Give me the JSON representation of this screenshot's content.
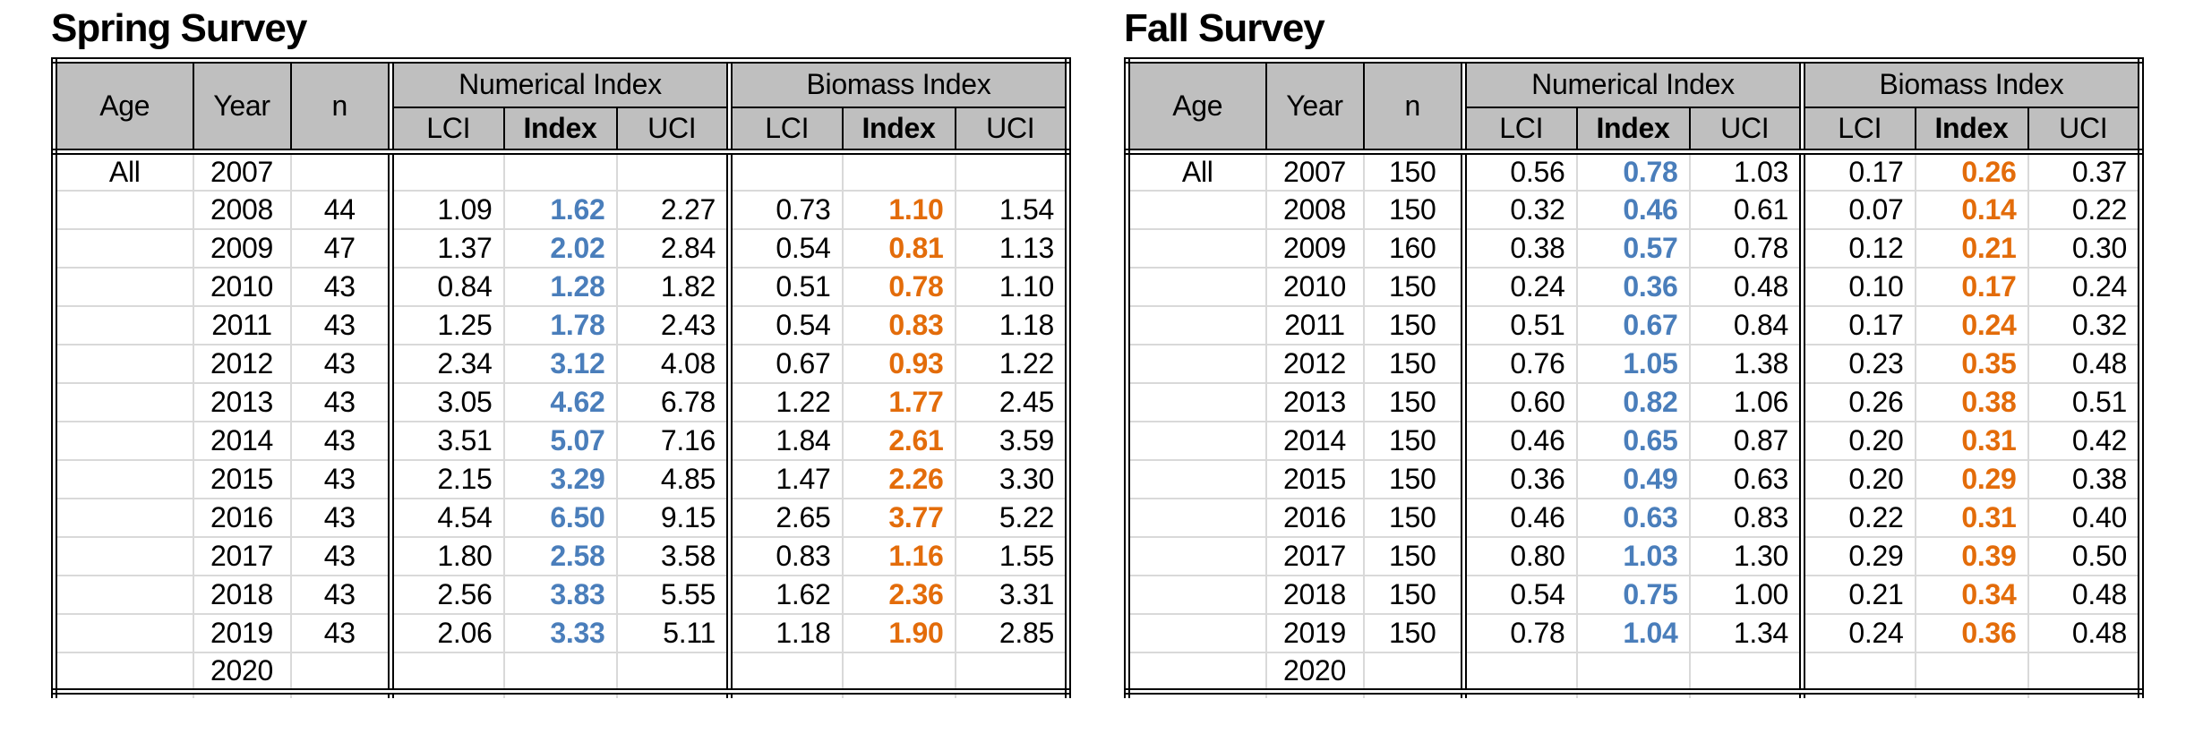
{
  "styles": {
    "header_bg": "#bfbfbf",
    "grid_color": "#d9d9d9",
    "border_color": "#000000",
    "numerical_index_color": "#4a7ebb",
    "biomass_index_color": "#e36c0a"
  },
  "tables": [
    {
      "title": "Spring Survey",
      "columns": {
        "age": "Age",
        "year": "Year",
        "n": "n",
        "numerical_group": "Numerical Index",
        "biomass_group": "Biomass Index",
        "lci": "LCI",
        "index": "Index",
        "uci": "UCI"
      },
      "rows": [
        {
          "age": "All",
          "year": "2007",
          "n": "",
          "num_lci": "",
          "num_index": "",
          "num_uci": "",
          "bio_lci": "",
          "bio_index": "",
          "bio_uci": ""
        },
        {
          "age": "",
          "year": "2008",
          "n": "44",
          "num_lci": "1.09",
          "num_index": "1.62",
          "num_uci": "2.27",
          "bio_lci": "0.73",
          "bio_index": "1.10",
          "bio_uci": "1.54"
        },
        {
          "age": "",
          "year": "2009",
          "n": "47",
          "num_lci": "1.37",
          "num_index": "2.02",
          "num_uci": "2.84",
          "bio_lci": "0.54",
          "bio_index": "0.81",
          "bio_uci": "1.13"
        },
        {
          "age": "",
          "year": "2010",
          "n": "43",
          "num_lci": "0.84",
          "num_index": "1.28",
          "num_uci": "1.82",
          "bio_lci": "0.51",
          "bio_index": "0.78",
          "bio_uci": "1.10"
        },
        {
          "age": "",
          "year": "2011",
          "n": "43",
          "num_lci": "1.25",
          "num_index": "1.78",
          "num_uci": "2.43",
          "bio_lci": "0.54",
          "bio_index": "0.83",
          "bio_uci": "1.18"
        },
        {
          "age": "",
          "year": "2012",
          "n": "43",
          "num_lci": "2.34",
          "num_index": "3.12",
          "num_uci": "4.08",
          "bio_lci": "0.67",
          "bio_index": "0.93",
          "bio_uci": "1.22"
        },
        {
          "age": "",
          "year": "2013",
          "n": "43",
          "num_lci": "3.05",
          "num_index": "4.62",
          "num_uci": "6.78",
          "bio_lci": "1.22",
          "bio_index": "1.77",
          "bio_uci": "2.45"
        },
        {
          "age": "",
          "year": "2014",
          "n": "43",
          "num_lci": "3.51",
          "num_index": "5.07",
          "num_uci": "7.16",
          "bio_lci": "1.84",
          "bio_index": "2.61",
          "bio_uci": "3.59"
        },
        {
          "age": "",
          "year": "2015",
          "n": "43",
          "num_lci": "2.15",
          "num_index": "3.29",
          "num_uci": "4.85",
          "bio_lci": "1.47",
          "bio_index": "2.26",
          "bio_uci": "3.30"
        },
        {
          "age": "",
          "year": "2016",
          "n": "43",
          "num_lci": "4.54",
          "num_index": "6.50",
          "num_uci": "9.15",
          "bio_lci": "2.65",
          "bio_index": "3.77",
          "bio_uci": "5.22"
        },
        {
          "age": "",
          "year": "2017",
          "n": "43",
          "num_lci": "1.80",
          "num_index": "2.58",
          "num_uci": "3.58",
          "bio_lci": "0.83",
          "bio_index": "1.16",
          "bio_uci": "1.55"
        },
        {
          "age": "",
          "year": "2018",
          "n": "43",
          "num_lci": "2.56",
          "num_index": "3.83",
          "num_uci": "5.55",
          "bio_lci": "1.62",
          "bio_index": "2.36",
          "bio_uci": "3.31"
        },
        {
          "age": "",
          "year": "2019",
          "n": "43",
          "num_lci": "2.06",
          "num_index": "3.33",
          "num_uci": "5.11",
          "bio_lci": "1.18",
          "bio_index": "1.90",
          "bio_uci": "2.85"
        },
        {
          "age": "",
          "year": "2020",
          "n": "",
          "num_lci": "",
          "num_index": "",
          "num_uci": "",
          "bio_lci": "",
          "bio_index": "",
          "bio_uci": ""
        }
      ]
    },
    {
      "title": "Fall Survey",
      "columns": {
        "age": "Age",
        "year": "Year",
        "n": "n",
        "numerical_group": "Numerical Index",
        "biomass_group": "Biomass Index",
        "lci": "LCI",
        "index": "Index",
        "uci": "UCI"
      },
      "rows": [
        {
          "age": "All",
          "year": "2007",
          "n": "150",
          "num_lci": "0.56",
          "num_index": "0.78",
          "num_uci": "1.03",
          "bio_lci": "0.17",
          "bio_index": "0.26",
          "bio_uci": "0.37"
        },
        {
          "age": "",
          "year": "2008",
          "n": "150",
          "num_lci": "0.32",
          "num_index": "0.46",
          "num_uci": "0.61",
          "bio_lci": "0.07",
          "bio_index": "0.14",
          "bio_uci": "0.22"
        },
        {
          "age": "",
          "year": "2009",
          "n": "160",
          "num_lci": "0.38",
          "num_index": "0.57",
          "num_uci": "0.78",
          "bio_lci": "0.12",
          "bio_index": "0.21",
          "bio_uci": "0.30"
        },
        {
          "age": "",
          "year": "2010",
          "n": "150",
          "num_lci": "0.24",
          "num_index": "0.36",
          "num_uci": "0.48",
          "bio_lci": "0.10",
          "bio_index": "0.17",
          "bio_uci": "0.24"
        },
        {
          "age": "",
          "year": "2011",
          "n": "150",
          "num_lci": "0.51",
          "num_index": "0.67",
          "num_uci": "0.84",
          "bio_lci": "0.17",
          "bio_index": "0.24",
          "bio_uci": "0.32"
        },
        {
          "age": "",
          "year": "2012",
          "n": "150",
          "num_lci": "0.76",
          "num_index": "1.05",
          "num_uci": "1.38",
          "bio_lci": "0.23",
          "bio_index": "0.35",
          "bio_uci": "0.48"
        },
        {
          "age": "",
          "year": "2013",
          "n": "150",
          "num_lci": "0.60",
          "num_index": "0.82",
          "num_uci": "1.06",
          "bio_lci": "0.26",
          "bio_index": "0.38",
          "bio_uci": "0.51"
        },
        {
          "age": "",
          "year": "2014",
          "n": "150",
          "num_lci": "0.46",
          "num_index": "0.65",
          "num_uci": "0.87",
          "bio_lci": "0.20",
          "bio_index": "0.31",
          "bio_uci": "0.42"
        },
        {
          "age": "",
          "year": "2015",
          "n": "150",
          "num_lci": "0.36",
          "num_index": "0.49",
          "num_uci": "0.63",
          "bio_lci": "0.20",
          "bio_index": "0.29",
          "bio_uci": "0.38"
        },
        {
          "age": "",
          "year": "2016",
          "n": "150",
          "num_lci": "0.46",
          "num_index": "0.63",
          "num_uci": "0.83",
          "bio_lci": "0.22",
          "bio_index": "0.31",
          "bio_uci": "0.40"
        },
        {
          "age": "",
          "year": "2017",
          "n": "150",
          "num_lci": "0.80",
          "num_index": "1.03",
          "num_uci": "1.30",
          "bio_lci": "0.29",
          "bio_index": "0.39",
          "bio_uci": "0.50"
        },
        {
          "age": "",
          "year": "2018",
          "n": "150",
          "num_lci": "0.54",
          "num_index": "0.75",
          "num_uci": "1.00",
          "bio_lci": "0.21",
          "bio_index": "0.34",
          "bio_uci": "0.48"
        },
        {
          "age": "",
          "year": "2019",
          "n": "150",
          "num_lci": "0.78",
          "num_index": "1.04",
          "num_uci": "1.34",
          "bio_lci": "0.24",
          "bio_index": "0.36",
          "bio_uci": "0.48"
        },
        {
          "age": "",
          "year": "2020",
          "n": "",
          "num_lci": "",
          "num_index": "",
          "num_uci": "",
          "bio_lci": "",
          "bio_index": "",
          "bio_uci": ""
        }
      ]
    }
  ]
}
